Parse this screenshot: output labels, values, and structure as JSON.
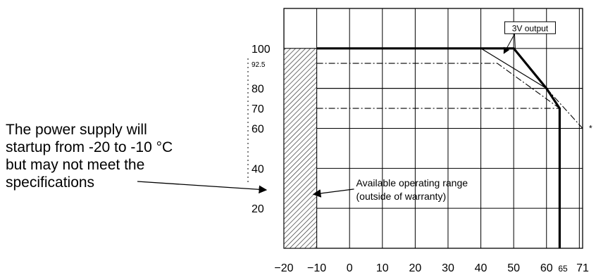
{
  "chart_data": {
    "type": "line",
    "title": "",
    "xlabel": "",
    "ylabel": "",
    "xlim": [
      -20,
      71
    ],
    "ylim": [
      0,
      120
    ],
    "grid": true,
    "x_ticks": [
      -20,
      -10,
      0,
      10,
      20,
      30,
      40,
      50,
      60,
      65,
      71
    ],
    "x_tick_labels": [
      "−20",
      "−10",
      "0",
      "10",
      "20",
      "30",
      "40",
      "50",
      "60",
      "65",
      "71"
    ],
    "y_ticks": [
      100,
      92.5,
      80,
      70,
      60,
      40,
      20
    ],
    "y_tick_labels": [
      "100",
      "92.5",
      "80",
      "70",
      "60",
      "40",
      "20"
    ],
    "series": [
      {
        "name": "",
        "style": "solid-bold",
        "x": [
          -10,
          50,
          60,
          64,
          64
        ],
        "y": [
          100,
          100,
          80,
          70,
          0
        ]
      },
      {
        "name": "3V output",
        "style": "solid-thin",
        "x": [
          40,
          60
        ],
        "y": [
          100,
          80
        ]
      },
      {
        "name": "",
        "style": "dash-dot",
        "x": [
          -10,
          45,
          64
        ],
        "y": [
          92.5,
          92.5,
          70
        ]
      },
      {
        "name": "",
        "style": "dash-dot",
        "x": [
          -10,
          64
        ],
        "y": [
          70,
          70
        ]
      },
      {
        "name": "",
        "style": "dash-dot",
        "x": [
          60,
          71
        ],
        "y": [
          80,
          60
        ]
      }
    ],
    "shaded_region": {
      "x_from": -20,
      "x_to": -10,
      "y_from": 0,
      "y_to": 100,
      "pattern": "hatched"
    },
    "annotations": [
      {
        "text": "3V output",
        "x": 55,
        "y": 110
      },
      {
        "text": "*",
        "x": 71,
        "y": 60
      },
      {
        "text": "Available operating range",
        "x": 2,
        "y": 31
      },
      {
        "text": "(outside of warranty)",
        "x": 2,
        "y": 25
      }
    ]
  },
  "side_note": {
    "lines": [
      "The power supply will",
      "startup from -20 to -10 °C",
      "but may not meet the",
      "specifications"
    ]
  }
}
